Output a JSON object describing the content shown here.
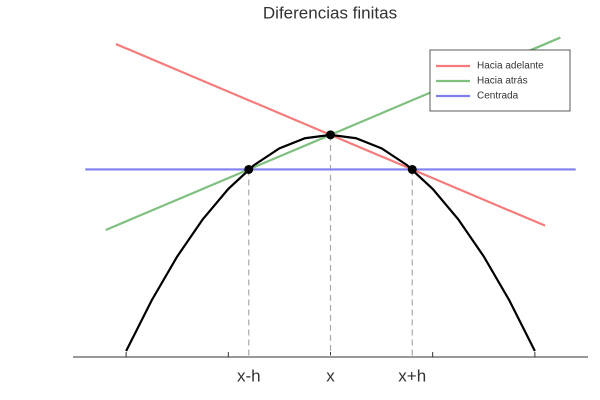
{
  "chart_data": {
    "type": "line",
    "title": "Diferencias finitas",
    "xlim": [
      -2.52,
      2.52
    ],
    "ylim": [
      -0.11,
      5.94
    ],
    "xticks": [
      {
        "value": -0.8,
        "label": "x-h"
      },
      {
        "value": 0,
        "label": "x"
      },
      {
        "value": 0.8,
        "label": "x+h"
      }
    ],
    "minor_xticks": [
      -2,
      -1,
      0,
      1,
      2
    ],
    "curve": {
      "color": "#000000",
      "x": [
        -2,
        -1.75,
        -1.5,
        -1.25,
        -1,
        -0.75,
        -0.5,
        -0.25,
        0,
        0.25,
        0.5,
        0.75,
        1,
        1.25,
        1.5,
        1.75,
        2
      ],
      "values": [
        0,
        0.9375,
        1.75,
        2.4375,
        3,
        3.4375,
        3.75,
        3.9375,
        4,
        3.9375,
        3.75,
        3.4375,
        3,
        2.4375,
        1.75,
        0.9375,
        0
      ]
    },
    "series": [
      {
        "name": "Hacia adelante",
        "color": "#f47c7c",
        "x": [
          -2.1,
          2.1
        ],
        "values": [
          5.68,
          2.32
        ]
      },
      {
        "name": "Hacia atrás",
        "color": "#7fbf7f",
        "x": [
          -2.2,
          2.25
        ],
        "values": [
          2.24,
          5.8
        ]
      },
      {
        "name": "Centrada",
        "color": "#7f7ff0",
        "x": [
          -2.4,
          2.4
        ],
        "values": [
          3.36,
          3.36
        ]
      }
    ],
    "points": {
      "color": "#000000",
      "x": [
        -0.8,
        0,
        0.8
      ],
      "values": [
        3.36,
        4,
        3.36
      ]
    },
    "legend": "upper right"
  }
}
